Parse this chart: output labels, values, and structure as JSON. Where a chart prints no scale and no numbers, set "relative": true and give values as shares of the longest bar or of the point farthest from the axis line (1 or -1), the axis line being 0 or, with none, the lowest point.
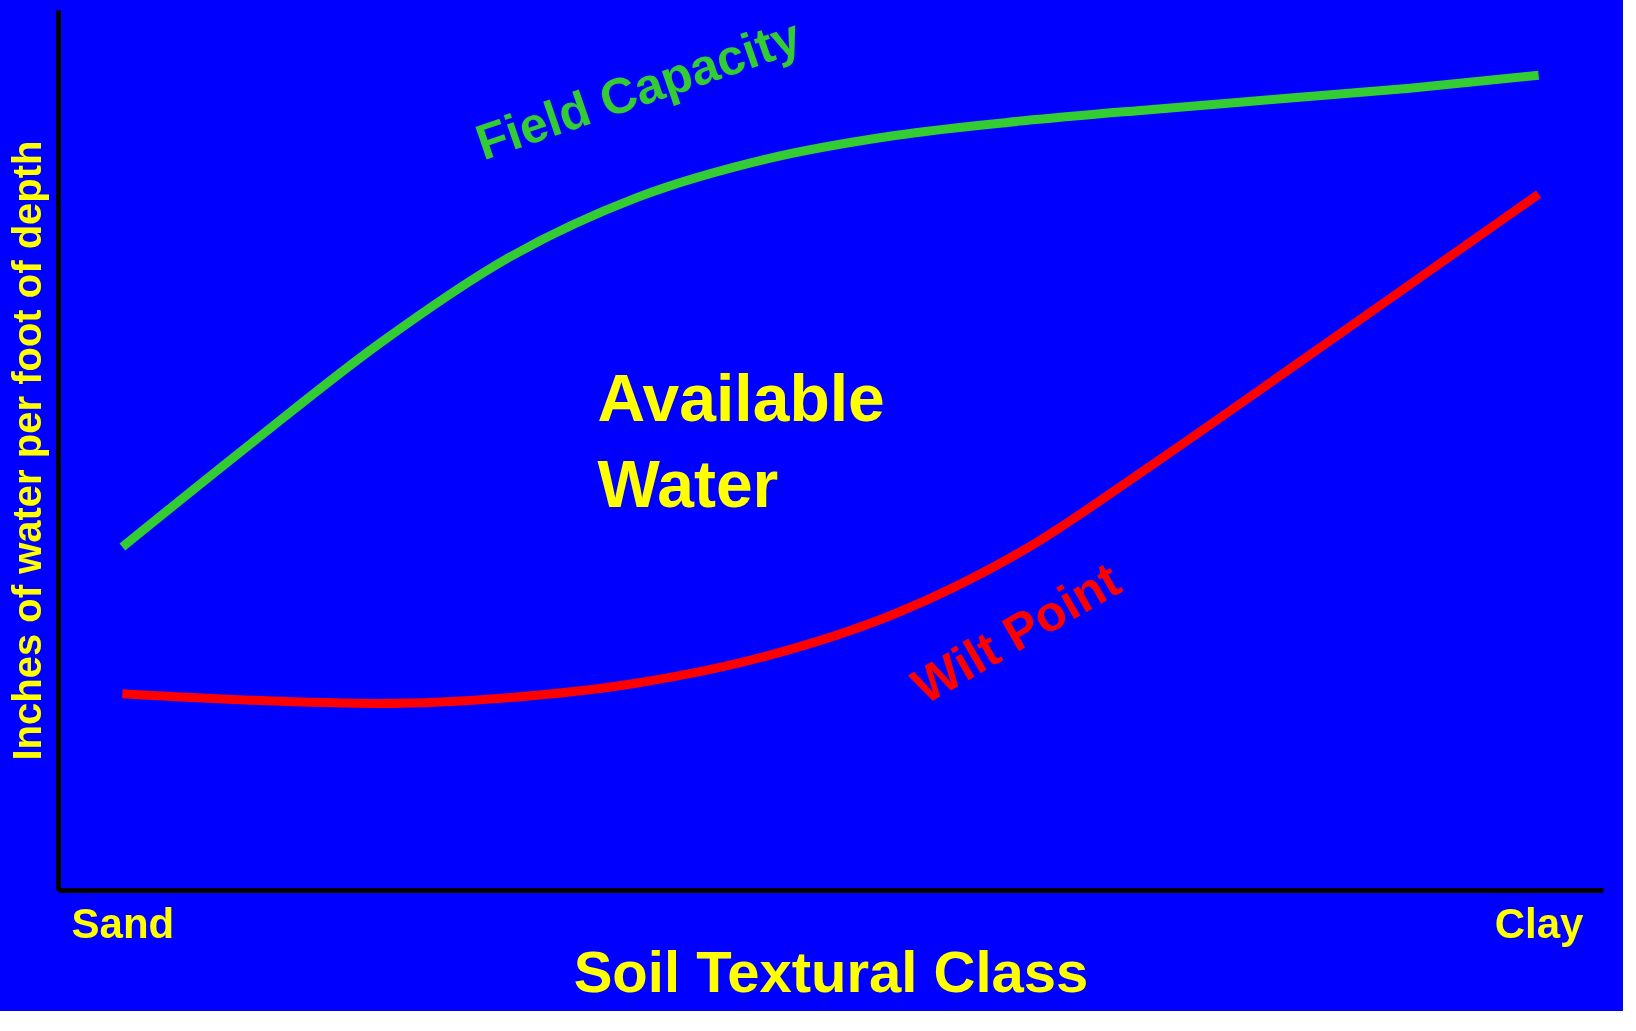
{
  "chart_data": {
    "type": "line",
    "relative": true,
    "categories": [
      "Sand",
      null,
      null,
      null,
      null,
      null,
      null,
      null,
      null,
      null,
      null,
      "Clay"
    ],
    "xlabel": "Soil Textural Class",
    "ylabel": "Inches of water per foot of depth",
    "series": [
      {
        "name": "Field Capacity",
        "color": "#33cc33",
        "values": [
          0.421,
          0.548,
          0.671,
          0.776,
          0.85,
          0.897,
          0.926,
          0.944,
          0.958,
          0.971,
          0.984,
          1
        ]
      },
      {
        "name": "Wilt Point",
        "color": "#ff0000",
        "values": [
          0.241,
          0.233,
          0.229,
          0.236,
          0.254,
          0.287,
          0.339,
          0.417,
          0.522,
          0.632,
          0.743,
          0.854
        ]
      }
    ],
    "annotations": [
      "Available Water"
    ],
    "grid": false,
    "marker": "none",
    "line_style": "solid"
  }
}
